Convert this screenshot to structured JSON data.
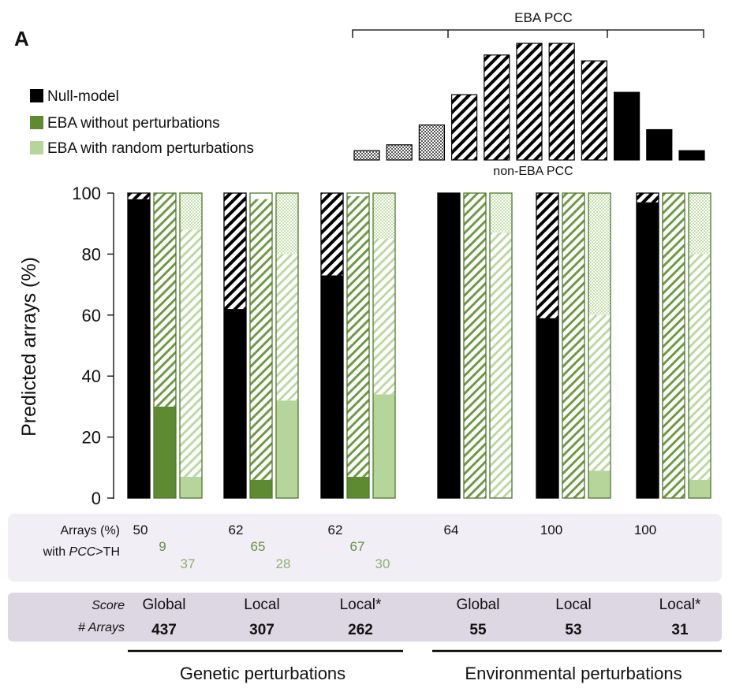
{
  "panel_label": "A",
  "legend": [
    {
      "label": "Null-model",
      "style": "black"
    },
    {
      "label": "EBA without perturbations",
      "style": "dark-green"
    },
    {
      "label": "EBA with random perturbations",
      "style": "light-green"
    }
  ],
  "inset": {
    "top_label": "EBA PCC",
    "bottom_label": "non-EBA PCC",
    "bar_heights": [
      0.08,
      0.13,
      0.3,
      0.56,
      0.9,
      1.0,
      1.0,
      0.85,
      0.58,
      0.26,
      0.08
    ],
    "bar_styles": [
      "dots",
      "dots",
      "dots",
      "hatch",
      "hatch",
      "hatch",
      "hatch",
      "hatch",
      "black",
      "black",
      "black"
    ]
  },
  "colors": {
    "black": "#000000",
    "dark_green": "#5e8a32",
    "light_green": "#b5d59b",
    "outline_green": "#4f7a2c",
    "table_bg": "#f1eef5",
    "score_bg": "#ddd6e3"
  },
  "chart_data": {
    "type": "bar",
    "subtype": "stacked",
    "ylabel": "Predicted arrays (%)",
    "ylim": [
      0,
      100
    ],
    "yticks": [
      0,
      20,
      40,
      60,
      80,
      100
    ],
    "groups": [
      {
        "score": "Global",
        "n_arrays": "437",
        "null_model": {
          "solid": 98,
          "hatched": 2
        },
        "eba_without": {
          "solid": 30,
          "hatched": 70
        },
        "eba_random": {
          "solid": 7,
          "hatched": 81,
          "light": 12
        }
      },
      {
        "score": "Local",
        "n_arrays": "307",
        "null_model": {
          "solid": 62,
          "hatched": 38
        },
        "eba_without": {
          "solid": 6,
          "hatched": 92
        },
        "eba_random": {
          "solid": 32,
          "hatched": 48,
          "light": 20
        }
      },
      {
        "score": "Local*",
        "n_arrays": "262",
        "null_model": {
          "solid": 73,
          "hatched": 27
        },
        "eba_without": {
          "solid": 7,
          "hatched": 92
        },
        "eba_random": {
          "solid": 34,
          "hatched": 51,
          "light": 15
        }
      },
      {
        "score": "Global",
        "n_arrays": "55",
        "null_model": {
          "solid": 100,
          "hatched": 0
        },
        "eba_without": {
          "solid": 0,
          "hatched": 100
        },
        "eba_random": {
          "solid": 0,
          "hatched": 87,
          "light": 13
        }
      },
      {
        "score": "Local",
        "n_arrays": "53",
        "null_model": {
          "solid": 59,
          "hatched": 41
        },
        "eba_without": {
          "solid": 0,
          "hatched": 100
        },
        "eba_random": {
          "solid": 9,
          "hatched": 51,
          "light": 40
        }
      },
      {
        "score": "Local*",
        "n_arrays": "31",
        "null_model": {
          "solid": 97,
          "hatched": 3
        },
        "eba_without": {
          "solid": 0,
          "hatched": 100
        },
        "eba_random": {
          "solid": 6,
          "hatched": 74,
          "light": 20
        }
      }
    ]
  },
  "pcc_table": {
    "row_label_1": "Arrays (%)",
    "row_label_2_prefix": "with ",
    "row_label_2_italic": "PCC",
    "row_label_2_suffix": ">TH",
    "values": [
      {
        "a": "50",
        "b": "9",
        "c": "37"
      },
      {
        "a": "62",
        "b": "65",
        "c": "28"
      },
      {
        "a": "62",
        "b": "67",
        "c": "30"
      },
      {
        "a": "64",
        "b": "",
        "c": ""
      },
      {
        "a": "100",
        "b": "",
        "c": ""
      },
      {
        "a": "100",
        "b": "",
        "c": ""
      }
    ]
  },
  "score_table": {
    "score_label": "Score",
    "arrays_label": "# Arrays"
  },
  "categories": [
    {
      "label": "Genetic perturbations"
    },
    {
      "label": "Environmental perturbations"
    }
  ]
}
